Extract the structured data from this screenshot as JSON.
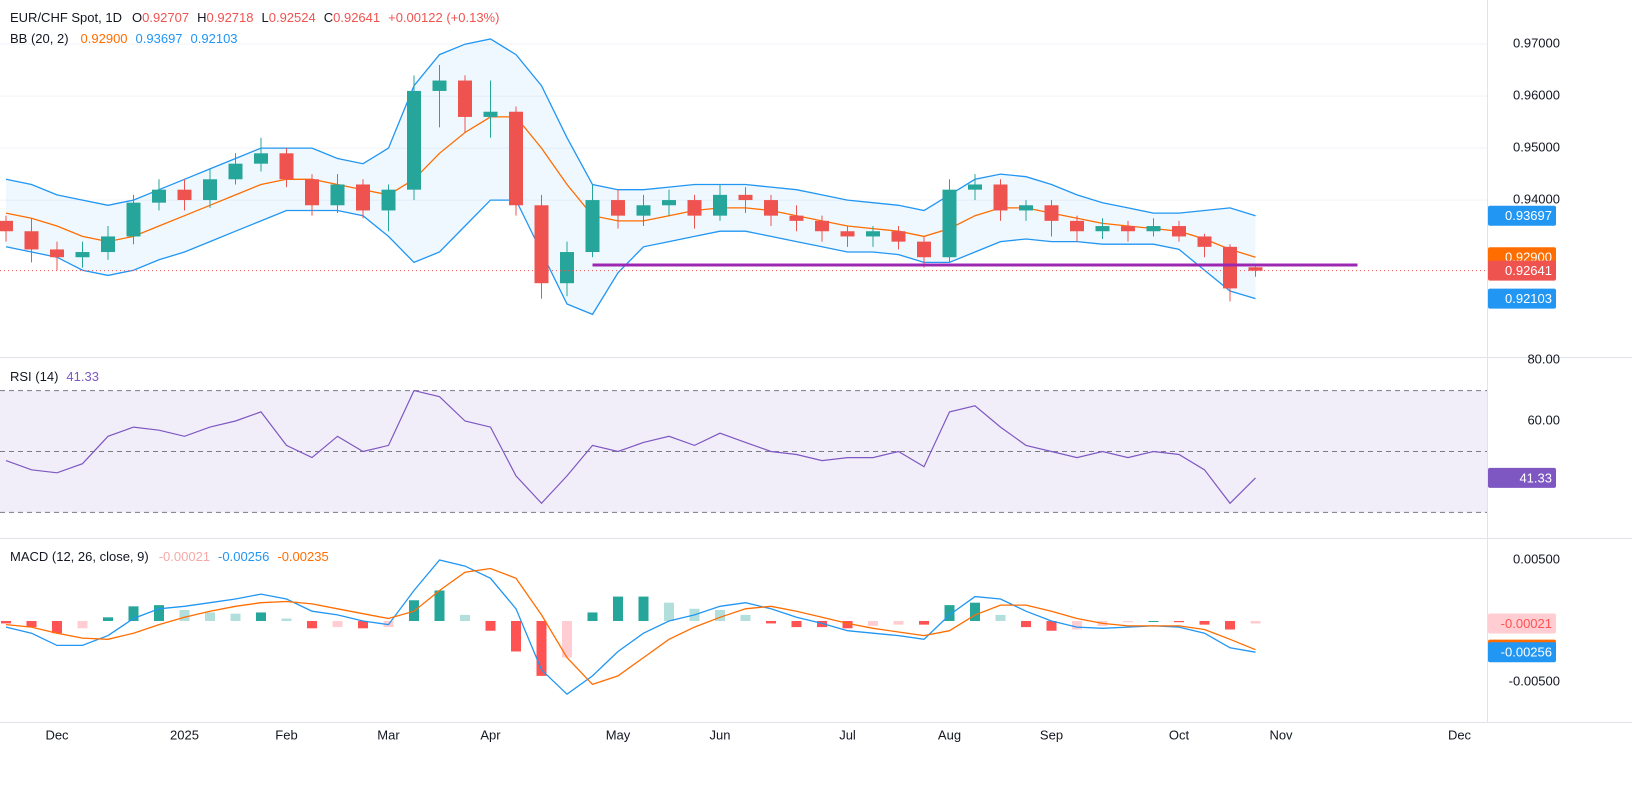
{
  "chart_data": [
    {
      "type": "candlestick",
      "title": "EUR/CHF Spot, 1D",
      "header_keys": [
        "O",
        "H",
        "L",
        "C"
      ],
      "change": "+0.00122 (+0.13%)",
      "categories": [
        null,
        null,
        "Dec",
        null,
        null,
        null,
        null,
        "2025",
        null,
        null,
        null,
        "Feb",
        null,
        null,
        null,
        "Mar",
        null,
        null,
        null,
        "Apr",
        null,
        null,
        null,
        null,
        "May",
        null,
        null,
        null,
        "Jun",
        null,
        null,
        null,
        null,
        "Jul",
        null,
        null,
        null,
        "Aug",
        null,
        null,
        null,
        "Sep",
        null,
        null,
        null,
        null,
        "Oct",
        null,
        null,
        null,
        "Nov",
        null,
        null,
        null,
        null,
        null,
        null,
        "Dec"
      ],
      "open": [
        0.936,
        0.934,
        0.9305,
        0.929,
        0.93,
        0.933,
        0.9395,
        0.942,
        0.94,
        0.944,
        0.947,
        0.949,
        0.944,
        0.939,
        0.943,
        0.938,
        0.942,
        0.961,
        0.963,
        0.956,
        0.957,
        0.939,
        0.924,
        0.93,
        0.94,
        0.937,
        0.939,
        0.94,
        0.937,
        0.941,
        0.94,
        0.937,
        0.936,
        0.934,
        0.933,
        0.934,
        0.932,
        0.929,
        0.942,
        0.943,
        0.938,
        0.939,
        0.936,
        0.934,
        0.935,
        0.934,
        0.935,
        0.933,
        0.931,
        0.92707,
        null,
        null,
        null,
        null,
        null,
        null,
        null,
        null
      ],
      "high": [
        0.937,
        0.9365,
        0.932,
        0.932,
        0.935,
        0.941,
        0.944,
        0.944,
        0.946,
        0.949,
        0.952,
        0.95,
        0.945,
        0.945,
        0.944,
        0.943,
        0.964,
        0.966,
        0.964,
        0.963,
        0.958,
        0.941,
        0.932,
        0.943,
        0.942,
        0.941,
        0.942,
        0.941,
        0.943,
        0.9425,
        0.941,
        0.939,
        0.937,
        0.935,
        0.935,
        0.935,
        0.933,
        0.944,
        0.945,
        0.944,
        0.94,
        0.94,
        0.937,
        0.9365,
        0.936,
        0.9365,
        0.936,
        0.9335,
        0.9315,
        0.92718,
        null,
        null,
        null,
        null,
        null,
        null,
        null,
        null
      ],
      "low": [
        0.932,
        0.928,
        0.9265,
        0.927,
        0.9285,
        0.9315,
        0.938,
        0.938,
        0.9385,
        0.943,
        0.9455,
        0.9425,
        0.937,
        0.9375,
        0.9365,
        0.934,
        0.94,
        0.954,
        0.953,
        0.952,
        0.937,
        0.921,
        0.9215,
        0.929,
        0.9345,
        0.935,
        0.937,
        0.9345,
        0.936,
        0.9375,
        0.935,
        0.934,
        0.932,
        0.931,
        0.931,
        0.9305,
        0.927,
        0.928,
        0.94,
        0.936,
        0.936,
        0.933,
        0.932,
        0.9325,
        0.932,
        0.933,
        0.932,
        0.929,
        0.9205,
        0.92524,
        null,
        null,
        null,
        null,
        null,
        null,
        null,
        null
      ],
      "close": [
        0.934,
        0.9305,
        0.929,
        0.93,
        0.933,
        0.9395,
        0.942,
        0.94,
        0.944,
        0.947,
        0.949,
        0.944,
        0.939,
        0.943,
        0.938,
        0.942,
        0.961,
        0.963,
        0.956,
        0.957,
        0.939,
        0.924,
        0.93,
        0.94,
        0.937,
        0.939,
        0.94,
        0.937,
        0.941,
        0.94,
        0.937,
        0.936,
        0.934,
        0.933,
        0.934,
        0.932,
        0.929,
        0.942,
        0.943,
        0.938,
        0.939,
        0.936,
        0.934,
        0.935,
        0.934,
        0.935,
        0.933,
        0.931,
        0.923,
        0.92641,
        null,
        null,
        null,
        null,
        null,
        null,
        null,
        null
      ],
      "up_color": "#26a69a",
      "down_color": "#ef5350",
      "ylim": [
        0.9098,
        0.9785
      ],
      "yticks": [
        {
          "value": 0.97,
          "label": "0.97000"
        },
        {
          "value": 0.96,
          "label": "0.96000"
        },
        {
          "value": 0.95,
          "label": "0.95000"
        },
        {
          "value": 0.94,
          "label": "0.94000"
        }
      ],
      "grid": true,
      "bands": {
        "title": "BB (20, 2)",
        "fill": "#2196f3",
        "series": [
          {
            "color": "#ff6d00",
            "last_label": "0.92900",
            "values": [
              0.9375,
              0.9365,
              0.935,
              0.933,
              0.932,
              0.933,
              0.935,
              0.937,
              0.939,
              0.941,
              0.943,
              0.944,
              0.944,
              0.943,
              0.942,
              0.941,
              0.944,
              0.949,
              0.953,
              0.956,
              0.956,
              0.95,
              0.943,
              0.937,
              0.936,
              0.936,
              0.937,
              0.938,
              0.9385,
              0.9385,
              0.938,
              0.937,
              0.936,
              0.935,
              0.9345,
              0.934,
              0.933,
              0.9345,
              0.937,
              0.9385,
              0.9385,
              0.9375,
              0.9365,
              0.9355,
              0.935,
              0.9345,
              0.934,
              0.9325,
              0.9305,
              0.929,
              null,
              null,
              null,
              null,
              null,
              null,
              null,
              null
            ]
          },
          {
            "color": "#2196f3",
            "values": [
              0.944,
              0.943,
              0.941,
              0.94,
              0.939,
              0.94,
              0.942,
              0.944,
              0.946,
              0.948,
              0.95,
              0.95,
              0.95,
              0.948,
              0.947,
              0.95,
              0.962,
              0.968,
              0.97,
              0.971,
              0.968,
              0.962,
              0.952,
              0.943,
              0.942,
              0.942,
              0.9425,
              0.943,
              0.943,
              0.943,
              0.9425,
              0.942,
              0.941,
              0.94,
              0.9395,
              0.939,
              0.938,
              0.941,
              0.944,
              0.945,
              0.9445,
              0.943,
              0.941,
              0.9395,
              0.9385,
              0.9375,
              0.9375,
              0.938,
              0.9385,
              0.93697,
              null,
              null,
              null,
              null,
              null,
              null,
              null,
              null
            ]
          },
          {
            "color": "#2196f3",
            "values": [
              0.931,
              0.93,
              0.929,
              0.9265,
              0.9255,
              0.9265,
              0.9285,
              0.93,
              0.932,
              0.934,
              0.936,
              0.938,
              0.938,
              0.938,
              0.937,
              0.933,
              0.928,
              0.93,
              0.935,
              0.94,
              0.94,
              0.93,
              0.92,
              0.918,
              0.926,
              0.931,
              0.932,
              0.933,
              0.934,
              0.934,
              0.933,
              0.932,
              0.931,
              0.93,
              0.93,
              0.9295,
              0.928,
              0.928,
              0.93,
              0.932,
              0.9325,
              0.932,
              0.932,
              0.9315,
              0.9315,
              0.9315,
              0.9305,
              0.9265,
              0.9225,
              0.92103,
              null,
              null,
              null,
              null,
              null,
              null,
              null,
              null
            ]
          }
        ]
      },
      "annotations": [
        {
          "type": "hline",
          "value": 0.9275,
          "x_from": 23,
          "x_to": 53,
          "color": "#9c27b0"
        }
      ]
    },
    {
      "type": "line",
      "title": "RSI (14)",
      "color": "#7e57c2",
      "values": [
        47,
        44,
        43,
        46,
        55,
        58,
        57,
        55,
        58,
        60,
        63,
        52,
        48,
        55,
        50,
        52,
        70,
        68,
        60,
        58,
        42,
        33,
        42,
        52,
        50,
        53,
        55,
        52,
        56,
        53,
        50,
        49,
        47,
        48,
        48,
        50,
        45,
        63,
        65,
        58,
        52,
        50,
        48,
        50,
        48,
        50,
        49,
        44,
        33,
        41.33,
        null,
        null,
        null,
        null,
        null,
        null,
        null,
        null
      ],
      "ylim": [
        21.6,
        80.7
      ],
      "yticks": [
        {
          "value": 80,
          "label": "80.00"
        },
        {
          "value": 60,
          "label": "60.00"
        }
      ],
      "levels": [
        70,
        50,
        30
      ]
    },
    {
      "type": "macd",
      "title": "MACD (12, 26, close, 9)",
      "histogram": {
        "colors": {
          "up_rising": "#26a69a",
          "up_falling": "#b2dfdb",
          "down_falling": "#ff5252",
          "down_rising": "#ffcdd2"
        },
        "values": [
          -0.0002,
          -0.0005,
          -0.001,
          -0.0006,
          0.0003,
          0.0012,
          0.0013,
          0.0009,
          0.0007,
          0.0006,
          0.0007,
          0.0002,
          -0.0006,
          -0.0005,
          -0.0006,
          -0.0005,
          0.0017,
          0.0025,
          0.0005,
          -0.0008,
          -0.0025,
          -0.0045,
          -0.003,
          0.0007,
          0.002,
          0.002,
          0.0015,
          0.001,
          0.0009,
          0.0005,
          -0.0002,
          -0.0005,
          -0.0005,
          -0.0006,
          -0.0004,
          -0.0003,
          -0.0003,
          0.0013,
          0.0015,
          0.0005,
          -0.0005,
          -0.0008,
          -0.0007,
          -0.0004,
          -0.0001,
          0.0,
          -0.0001,
          -0.0003,
          -0.0007,
          -0.00021,
          null,
          null,
          null,
          null,
          null,
          null,
          null,
          null
        ]
      },
      "series": [
        {
          "color": "#2196f3",
          "values": [
            -0.0005,
            -0.001,
            -0.002,
            -0.002,
            -0.0012,
            0.0002,
            0.001,
            0.0012,
            0.0015,
            0.0018,
            0.0022,
            0.0018,
            0.0008,
            0.0005,
            0.0,
            -0.0003,
            0.0025,
            0.005,
            0.0045,
            0.0035,
            0.001,
            -0.004,
            -0.006,
            -0.0045,
            -0.0025,
            -0.001,
            0.0,
            0.0005,
            0.0012,
            0.0015,
            0.001,
            0.0003,
            -0.0002,
            -0.0008,
            -0.001,
            -0.0012,
            -0.0015,
            0.0005,
            0.002,
            0.0018,
            0.0008,
            0.0,
            -0.0005,
            -0.0006,
            -0.0005,
            -0.0004,
            -0.0005,
            -0.001,
            -0.0022,
            -0.00256,
            null,
            null,
            null,
            null,
            null,
            null,
            null,
            null
          ]
        },
        {
          "color": "#ff6d00",
          "values": [
            -0.0003,
            -0.0005,
            -0.001,
            -0.0014,
            -0.0015,
            -0.001,
            -0.0003,
            0.0003,
            0.0008,
            0.0012,
            0.0015,
            0.0016,
            0.0014,
            0.001,
            0.0006,
            0.0002,
            0.0008,
            0.0025,
            0.004,
            0.0043,
            0.0035,
            0.0005,
            -0.003,
            -0.0052,
            -0.0045,
            -0.003,
            -0.0015,
            -0.0005,
            0.0003,
            0.001,
            0.0012,
            0.0008,
            0.0003,
            -0.0002,
            -0.0006,
            -0.0009,
            -0.0012,
            -0.0008,
            0.0005,
            0.0013,
            0.0013,
            0.0008,
            0.0002,
            -0.0002,
            -0.0004,
            -0.0004,
            -0.0004,
            -0.0007,
            -0.0015,
            -0.00235,
            null,
            null,
            null,
            null,
            null,
            null,
            null,
            null
          ]
        }
      ],
      "ylim": [
        -0.00828,
        0.00672
      ],
      "yticks": [
        {
          "value": 0.005,
          "label": "0.00500"
        },
        {
          "value": -0.005,
          "label": "-0.00500"
        }
      ]
    }
  ]
}
